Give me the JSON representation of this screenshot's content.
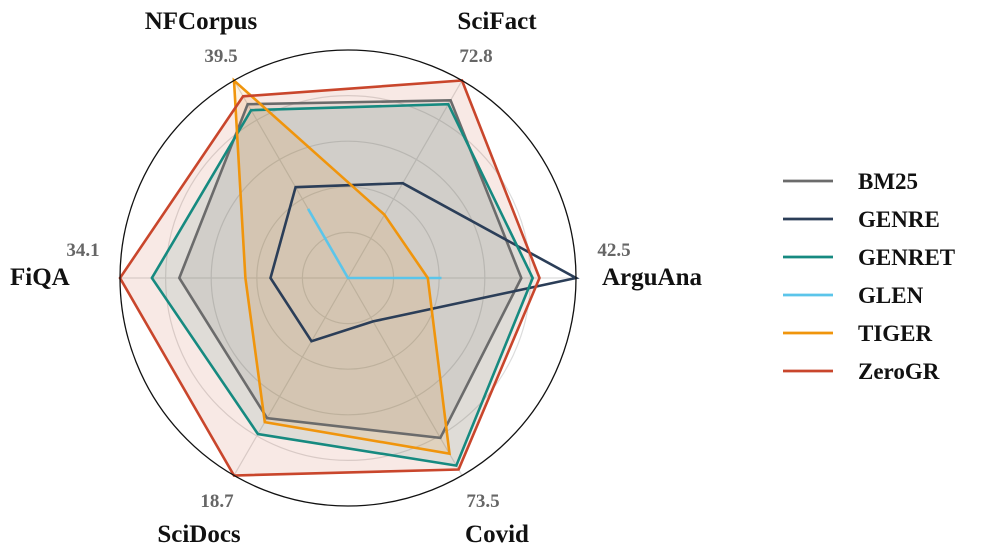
{
  "chart_data": {
    "type": "radar",
    "axes": [
      {
        "name": "SciFact",
        "max": "72.8"
      },
      {
        "name": "ArguAna",
        "max": "42.5"
      },
      {
        "name": "Covid",
        "max": "73.5"
      },
      {
        "name": "SciDocs",
        "max": "18.7"
      },
      {
        "name": "FiQA",
        "max": "34.1"
      },
      {
        "name": "NFCorpus",
        "max": "39.5"
      }
    ],
    "scale": "each axis normalized to its printed maximum (1.0 = outer circle)",
    "series": [
      {
        "name": "BM25",
        "color": "#6b6b6b",
        "fill": true,
        "values": [
          0.9,
          0.76,
          0.81,
          0.71,
          0.74,
          0.88
        ]
      },
      {
        "name": "GENRE",
        "color": "#2b3e58",
        "fill": false,
        "values": [
          0.48,
          1.0,
          0.22,
          0.32,
          0.34,
          0.46
        ]
      },
      {
        "name": "GENRET",
        "color": "#168a80",
        "fill": true,
        "values": [
          0.88,
          0.81,
          0.95,
          0.79,
          0.86,
          0.85
        ]
      },
      {
        "name": "GLEN",
        "color": "#5bc5ea",
        "fill": false,
        "values": [
          0.0,
          0.41,
          0.0,
          0.0,
          0.0,
          0.35
        ]
      },
      {
        "name": "TIGER",
        "color": "#f0950c",
        "fill": true,
        "values": [
          0.32,
          0.35,
          0.89,
          0.73,
          0.45,
          1.0
        ]
      },
      {
        "name": "ZeroGR",
        "color": "#c9462c",
        "fill": true,
        "values": [
          1.0,
          0.84,
          0.97,
          1.0,
          1.0,
          0.92
        ]
      }
    ],
    "grid": true,
    "legend": "right"
  }
}
